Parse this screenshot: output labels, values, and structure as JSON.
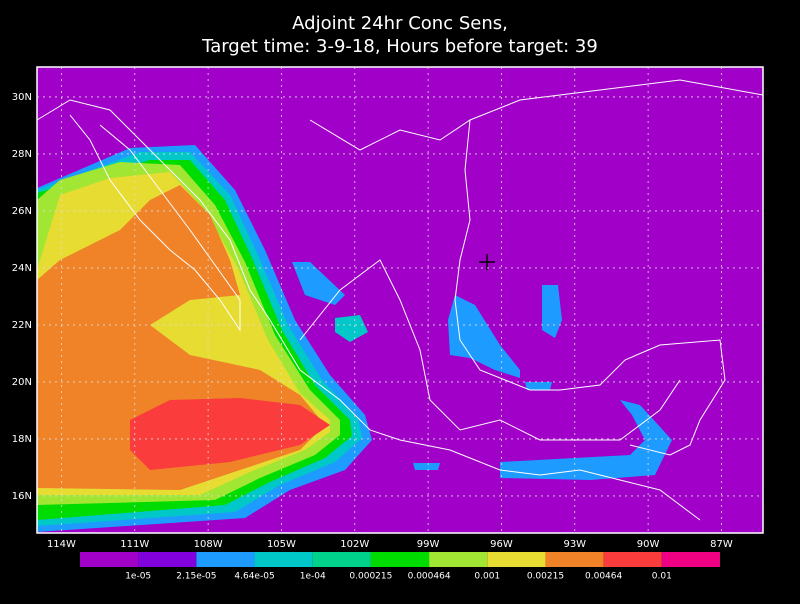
{
  "chart_data": {
    "type": "map",
    "title": [
      "Adjoint 24hr Conc Sens,",
      "Target time: 3-9-18, Hours before target: 39"
    ],
    "xlim": [
      -115,
      -85.3
    ],
    "ylim": [
      14.7,
      31.05
    ],
    "xticks": [
      {
        "value": -114,
        "label": "114W"
      },
      {
        "value": -111,
        "label": "111W"
      },
      {
        "value": -108,
        "label": "108W"
      },
      {
        "value": -105,
        "label": "105W"
      },
      {
        "value": -102,
        "label": "102W"
      },
      {
        "value": -99,
        "label": "99W"
      },
      {
        "value": -96,
        "label": "96W"
      },
      {
        "value": -93,
        "label": "93W"
      },
      {
        "value": -90,
        "label": "90W"
      },
      {
        "value": -87,
        "label": "87W"
      }
    ],
    "yticks": [
      {
        "value": 16,
        "label": "16N"
      },
      {
        "value": 18,
        "label": "18N"
      },
      {
        "value": 20,
        "label": "20N"
      },
      {
        "value": 22,
        "label": "22N"
      },
      {
        "value": 24,
        "label": "24N"
      },
      {
        "value": 26,
        "label": "26N"
      },
      {
        "value": 28,
        "label": "28N"
      },
      {
        "value": 30,
        "label": "30N"
      }
    ],
    "grid": true,
    "colorbar": {
      "colors": [
        "#a000c8",
        "#8200dc",
        "#1e9bff",
        "#00c8c8",
        "#00d28c",
        "#00dc00",
        "#a0e632",
        "#e6dc32",
        "#f08228",
        "#fa3c3c",
        "#f00082"
      ],
      "levels": [
        {
          "value": 1e-05,
          "label": "1e-05"
        },
        {
          "value": 2.15e-05,
          "label": "2.15e-05"
        },
        {
          "value": 4.64e-05,
          "label": "4.64e-05"
        },
        {
          "value": 0.0001,
          "label": "1e-04"
        },
        0.000215,
        0.000464,
        0.001,
        0.00215,
        0.00464,
        0.01
      ]
    }
  }
}
